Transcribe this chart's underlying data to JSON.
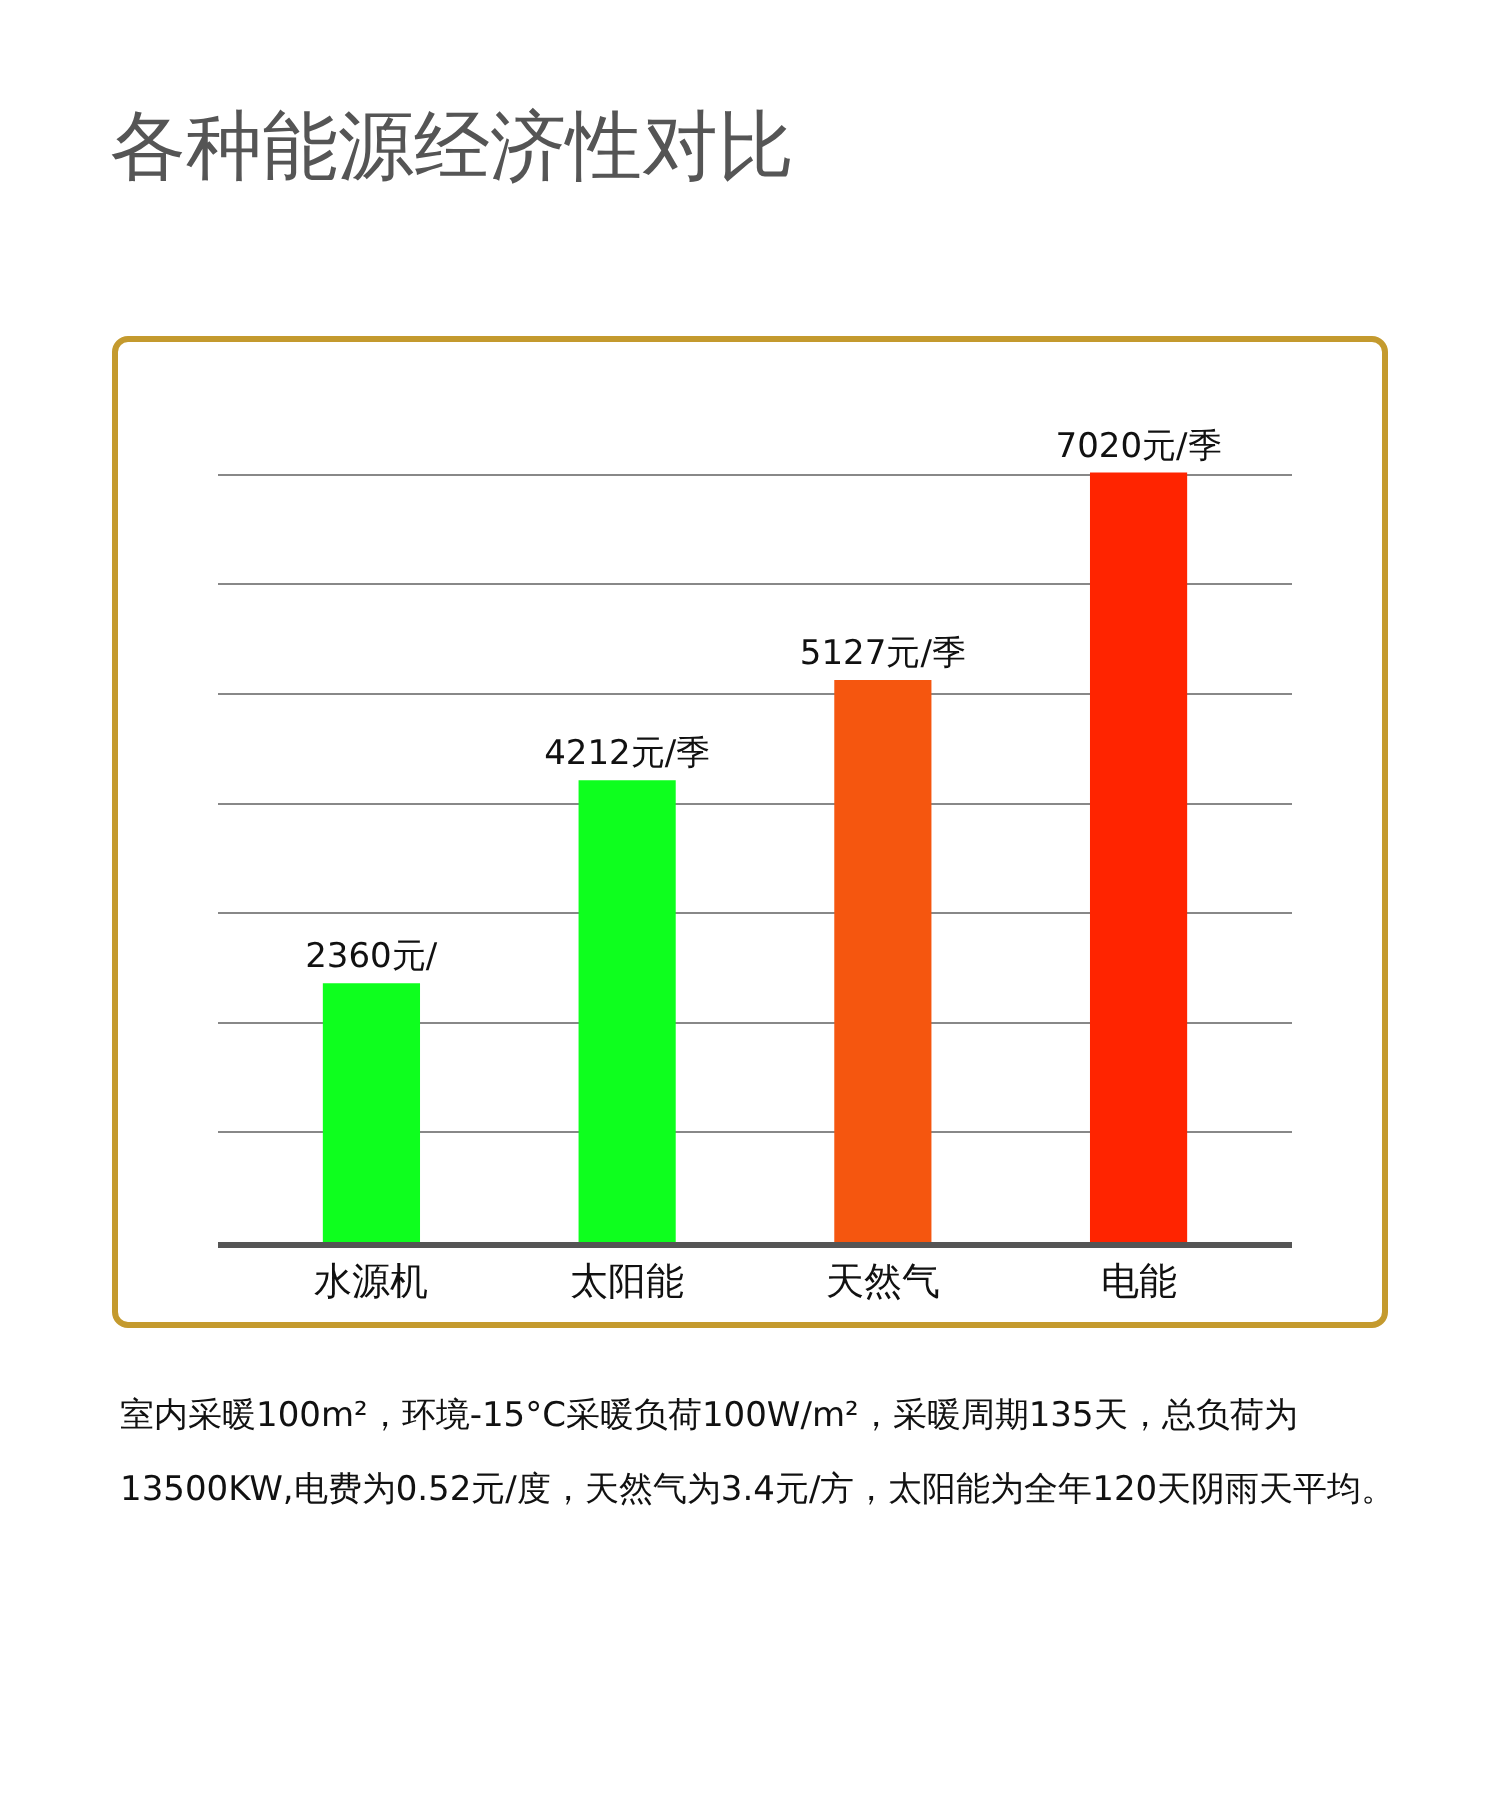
{
  "chart_data": {
    "type": "bar",
    "title": "各种能源经济性对比",
    "categories": [
      "水源机",
      "太阳能",
      "天然气",
      "电能"
    ],
    "values": [
      2360,
      4212,
      5127,
      7020
    ],
    "colors": [
      "#0eff1e",
      "#0eff1e",
      "#f5560f",
      "#ff2400"
    ],
    "value_labels": [
      "2360元/",
      "4212元/季",
      "5127元/季",
      "7020元/季"
    ],
    "yticks": [
      {
        "value": 0,
        "label": null
      },
      {
        "value": 1000,
        "label": null
      },
      {
        "value": 2000,
        "label": null
      },
      {
        "value": 3000,
        "label": null
      },
      {
        "value": 4000,
        "label": null
      },
      {
        "value": 5000,
        "label": null
      },
      {
        "value": 6000,
        "label": null
      },
      {
        "value": 7000,
        "label": null
      }
    ],
    "tick_labels": "x",
    "grid": "y",
    "annotations": [
      "室内采暖100m²，环境-15°C采暖负荷100W/m²，采暖周期135天，总负荷为13500KW,电费为0.52元/度，天然气为3.4元/方，太阳能为全年120天阴雨天平均。"
    ]
  }
}
